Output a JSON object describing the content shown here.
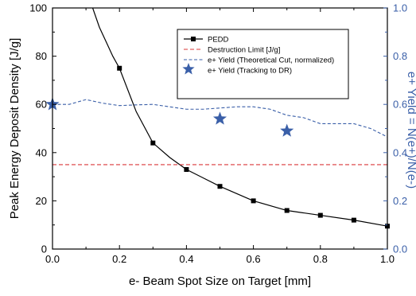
{
  "colors": {
    "pedd": "#000000",
    "destruction_limit": "#d9383a",
    "theoretical_yield": "#3a5fa8",
    "tracking_yield": "#3a5fa8",
    "right_axis": "#3a5fa8"
  },
  "chart_data": {
    "type": "line",
    "xlabel": "e- Beam Spot Size on Target [mm]",
    "ylabel": "Peak Energy Deposit Density [J/g]",
    "ylabel_right": "e+ Yield = N(e+)/N(e-)",
    "xlim": [
      0.0,
      1.0
    ],
    "ylim": [
      0,
      100
    ],
    "ylim_right": [
      0.0,
      1.0
    ],
    "x_ticks": [
      "0.0",
      "0.2",
      "0.4",
      "0.6",
      "0.8",
      "1.0"
    ],
    "y_ticks": [
      "0",
      "20",
      "40",
      "60",
      "80",
      "100"
    ],
    "y_ticks_right": [
      "0.0",
      "0.2",
      "0.4",
      "0.6",
      "0.8",
      "1.0"
    ],
    "grid": false,
    "legend_position": "top-right",
    "series": [
      {
        "name": "PEDD",
        "axis": "left",
        "style": "solid-line-square-markers",
        "x": [
          0.2,
          0.3,
          0.4,
          0.5,
          0.6,
          0.7,
          0.8,
          0.9,
          1.0
        ],
        "y": [
          75,
          44,
          33,
          26,
          20,
          16,
          14,
          12,
          9.5
        ],
        "curve_x": [
          0.12,
          0.14,
          0.16,
          0.18,
          0.2,
          0.25,
          0.3,
          0.35,
          0.4,
          0.5,
          0.6,
          0.7,
          0.8,
          0.9,
          1.0
        ],
        "curve_y": [
          100,
          92,
          86,
          80,
          75,
          57,
          44,
          38,
          33,
          26,
          20,
          16,
          14,
          12,
          9.5
        ]
      },
      {
        "name": "Destruction Limit [J/g]",
        "axis": "left",
        "style": "dashed-line",
        "x": [
          0.0,
          1.0
        ],
        "y": [
          35,
          35
        ]
      },
      {
        "name": "e+ Yield (Theoretical Cut, normalized)",
        "axis": "right",
        "style": "dashed-line",
        "x": [
          0.0,
          0.05,
          0.1,
          0.15,
          0.2,
          0.25,
          0.3,
          0.35,
          0.4,
          0.45,
          0.5,
          0.55,
          0.6,
          0.65,
          0.7,
          0.75,
          0.8,
          0.85,
          0.9,
          0.95,
          1.0
        ],
        "y": [
          0.6,
          0.6,
          0.62,
          0.605,
          0.595,
          0.598,
          0.6,
          0.59,
          0.58,
          0.58,
          0.585,
          0.59,
          0.59,
          0.58,
          0.555,
          0.545,
          0.52,
          0.52,
          0.52,
          0.5,
          0.465
        ]
      },
      {
        "name": "e+ Yield (Tracking to DR)",
        "axis": "right",
        "style": "star-markers",
        "x": [
          0.0,
          0.5,
          0.7
        ],
        "y": [
          0.6,
          0.54,
          0.49
        ]
      }
    ]
  }
}
